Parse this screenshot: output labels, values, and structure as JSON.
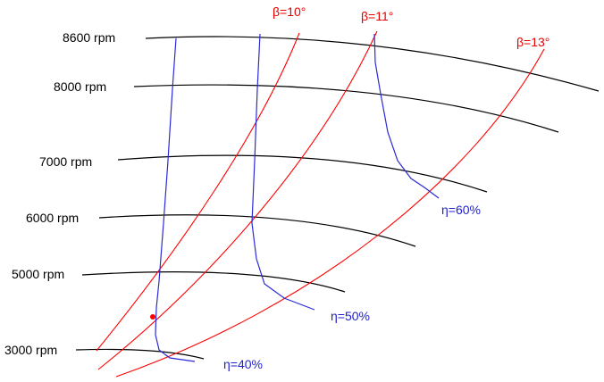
{
  "speed_lines": [
    {
      "label": "8600 rpm"
    },
    {
      "label": "8000 rpm"
    },
    {
      "label": "7000 rpm"
    },
    {
      "label": "6000 rpm"
    },
    {
      "label": "5000 rpm"
    },
    {
      "label": "3000 rpm"
    }
  ],
  "blade_angle_lines": [
    {
      "label": "β=10°"
    },
    {
      "label": "β=11°"
    },
    {
      "label": "β=13°"
    }
  ],
  "efficiency_lines": [
    {
      "label": "η=40%"
    },
    {
      "label": "η=50%"
    },
    {
      "label": "η=60%"
    }
  ],
  "colors": {
    "speed": "#000000",
    "blade_angle": "#ff0000",
    "efficiency": "#2a2ad6",
    "operating_point": "#ff0000"
  }
}
